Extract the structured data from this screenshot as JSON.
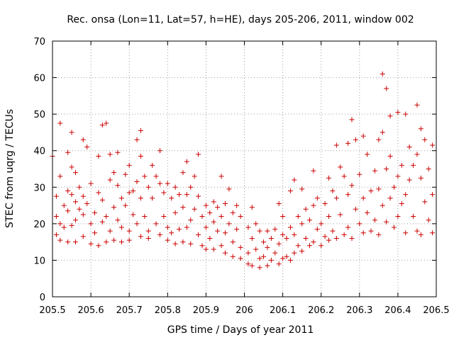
{
  "chart_data": {
    "type": "scatter",
    "title": "Rec. onsa (Lon=11, Lat=57, h=HE), days 205-206, 2011, window 002",
    "xlabel": "GPS time / Days of year 2011",
    "ylabel": "STEC from uqrg / TECUs",
    "xlim": [
      205.5,
      206.5
    ],
    "ylim": [
      0,
      70
    ],
    "xticks": [
      "205.5",
      "205.6",
      "205.7",
      "205.8",
      "205.9",
      "206",
      "206.1",
      "206.2",
      "206.3",
      "206.4",
      "206.5"
    ],
    "yticks": [
      "0",
      "10",
      "20",
      "30",
      "40",
      "50",
      "60",
      "70"
    ],
    "grid": true,
    "marker": "+",
    "color": "#cc0000",
    "points": [
      [
        205.5,
        38.5
      ],
      [
        205.51,
        27.5
      ],
      [
        205.51,
        22
      ],
      [
        205.51,
        17
      ],
      [
        205.52,
        47.5
      ],
      [
        205.52,
        33
      ],
      [
        205.52,
        20
      ],
      [
        205.52,
        15.5
      ],
      [
        205.53,
        25
      ],
      [
        205.53,
        19
      ],
      [
        205.54,
        39.5
      ],
      [
        205.54,
        29
      ],
      [
        205.54,
        23.5
      ],
      [
        205.54,
        15
      ],
      [
        205.55,
        45
      ],
      [
        205.55,
        35.5
      ],
      [
        205.55,
        28
      ],
      [
        205.55,
        19.5
      ],
      [
        205.56,
        34
      ],
      [
        205.56,
        26
      ],
      [
        205.56,
        21
      ],
      [
        205.56,
        15
      ],
      [
        205.57,
        30
      ],
      [
        205.57,
        24
      ],
      [
        205.58,
        43
      ],
      [
        205.58,
        27.5
      ],
      [
        205.58,
        22.5
      ],
      [
        205.58,
        16.5
      ],
      [
        205.59,
        41
      ],
      [
        205.59,
        25.5
      ],
      [
        205.6,
        31
      ],
      [
        205.6,
        20
      ],
      [
        205.6,
        14.5
      ],
      [
        205.61,
        23
      ],
      [
        205.61,
        17.5
      ],
      [
        205.62,
        38.5
      ],
      [
        205.62,
        28.5
      ],
      [
        205.62,
        14
      ],
      [
        205.63,
        47
      ],
      [
        205.63,
        26.5
      ],
      [
        205.63,
        20.5
      ],
      [
        205.64,
        47.5
      ],
      [
        205.64,
        22
      ],
      [
        205.64,
        15
      ],
      [
        205.65,
        39
      ],
      [
        205.65,
        32
      ],
      [
        205.65,
        18
      ],
      [
        205.66,
        34
      ],
      [
        205.66,
        24.5
      ],
      [
        205.66,
        15.5
      ],
      [
        205.67,
        39.5
      ],
      [
        205.67,
        30.5
      ],
      [
        205.67,
        21
      ],
      [
        205.68,
        27
      ],
      [
        205.68,
        19
      ],
      [
        205.68,
        15
      ],
      [
        205.69,
        33.5
      ],
      [
        205.69,
        25
      ],
      [
        205.7,
        36
      ],
      [
        205.7,
        28.5
      ],
      [
        205.7,
        18
      ],
      [
        205.7,
        15.5
      ],
      [
        205.71,
        29
      ],
      [
        205.71,
        22.5
      ],
      [
        205.72,
        43
      ],
      [
        205.72,
        31.5
      ],
      [
        205.72,
        20
      ],
      [
        205.73,
        45.5
      ],
      [
        205.73,
        38.5
      ],
      [
        205.73,
        27
      ],
      [
        205.73,
        16.5
      ],
      [
        205.74,
        33
      ],
      [
        205.74,
        22
      ],
      [
        205.75,
        30
      ],
      [
        205.75,
        18
      ],
      [
        205.75,
        16
      ],
      [
        205.76,
        36
      ],
      [
        205.76,
        27
      ],
      [
        205.77,
        33
      ],
      [
        205.77,
        20
      ],
      [
        205.78,
        40
      ],
      [
        205.78,
        31
      ],
      [
        205.78,
        17
      ],
      [
        205.79,
        28.5
      ],
      [
        205.79,
        22
      ],
      [
        205.8,
        31
      ],
      [
        205.8,
        19
      ],
      [
        205.8,
        15.5
      ],
      [
        205.81,
        27
      ],
      [
        205.81,
        17.5
      ],
      [
        205.82,
        30
      ],
      [
        205.82,
        23
      ],
      [
        205.82,
        14.5
      ],
      [
        205.83,
        28
      ],
      [
        205.83,
        18.5
      ],
      [
        205.84,
        34
      ],
      [
        205.84,
        24.5
      ],
      [
        205.84,
        15
      ],
      [
        205.85,
        37
      ],
      [
        205.85,
        28
      ],
      [
        205.85,
        19
      ],
      [
        205.86,
        30
      ],
      [
        205.86,
        21
      ],
      [
        205.86,
        14.5
      ],
      [
        205.87,
        33
      ],
      [
        205.87,
        24
      ],
      [
        205.88,
        39
      ],
      [
        205.88,
        27.5
      ],
      [
        205.88,
        17
      ],
      [
        205.89,
        22
      ],
      [
        205.89,
        14
      ],
      [
        205.9,
        25
      ],
      [
        205.9,
        19
      ],
      [
        205.9,
        13
      ],
      [
        205.91,
        23
      ],
      [
        205.91,
        16
      ],
      [
        205.92,
        26
      ],
      [
        205.92,
        20.5
      ],
      [
        205.92,
        13
      ],
      [
        205.93,
        24.5
      ],
      [
        205.93,
        18
      ],
      [
        205.94,
        33
      ],
      [
        205.94,
        22
      ],
      [
        205.94,
        14
      ],
      [
        205.95,
        25.5
      ],
      [
        205.95,
        17.5
      ],
      [
        205.95,
        12
      ],
      [
        205.96,
        29.5
      ],
      [
        205.96,
        20
      ],
      [
        205.97,
        23
      ],
      [
        205.97,
        15
      ],
      [
        205.97,
        11
      ],
      [
        205.98,
        25
      ],
      [
        205.98,
        18.5
      ],
      [
        205.99,
        22
      ],
      [
        205.99,
        13.5
      ],
      [
        205.99,
        10.5
      ],
      [
        206.01,
        19
      ],
      [
        206.01,
        12
      ],
      [
        206.01,
        9
      ],
      [
        206.02,
        24.5
      ],
      [
        206.02,
        16
      ],
      [
        206.02,
        8.5
      ],
      [
        206.03,
        20
      ],
      [
        206.03,
        13
      ],
      [
        206.04,
        18
      ],
      [
        206.04,
        10.5
      ],
      [
        206.04,
        8
      ],
      [
        206.05,
        15
      ],
      [
        206.05,
        11
      ],
      [
        206.06,
        18
      ],
      [
        206.06,
        13.5
      ],
      [
        206.06,
        8.5
      ],
      [
        206.07,
        16
      ],
      [
        206.07,
        10
      ],
      [
        206.08,
        18.5
      ],
      [
        206.08,
        12
      ],
      [
        206.09,
        25.5
      ],
      [
        206.09,
        14.5
      ],
      [
        206.09,
        9
      ],
      [
        206.1,
        22
      ],
      [
        206.1,
        17
      ],
      [
        206.1,
        10.5
      ],
      [
        206.11,
        16
      ],
      [
        206.11,
        11
      ],
      [
        206.12,
        29
      ],
      [
        206.12,
        19
      ],
      [
        206.12,
        10
      ],
      [
        206.13,
        32
      ],
      [
        206.13,
        17
      ],
      [
        206.13,
        12
      ],
      [
        206.14,
        22
      ],
      [
        206.14,
        14
      ],
      [
        206.15,
        29.5
      ],
      [
        206.15,
        20
      ],
      [
        206.15,
        12.5
      ],
      [
        206.16,
        24
      ],
      [
        206.16,
        16
      ],
      [
        206.17,
        21
      ],
      [
        206.17,
        14
      ],
      [
        206.18,
        34.5
      ],
      [
        206.18,
        25
      ],
      [
        206.18,
        15
      ],
      [
        206.19,
        27
      ],
      [
        206.19,
        18.5
      ],
      [
        206.2,
        20
      ],
      [
        206.2,
        14
      ],
      [
        206.21,
        25.5
      ],
      [
        206.21,
        16.5
      ],
      [
        206.22,
        32.5
      ],
      [
        206.22,
        22
      ],
      [
        206.22,
        15.5
      ],
      [
        206.23,
        29
      ],
      [
        206.23,
        18
      ],
      [
        206.24,
        41.5
      ],
      [
        206.24,
        27
      ],
      [
        206.24,
        16
      ],
      [
        206.25,
        35.5
      ],
      [
        206.25,
        22.5
      ],
      [
        206.26,
        33
      ],
      [
        206.26,
        17
      ],
      [
        206.27,
        42
      ],
      [
        206.27,
        28
      ],
      [
        206.27,
        19
      ],
      [
        206.28,
        48.5
      ],
      [
        206.28,
        30.5
      ],
      [
        206.28,
        16
      ],
      [
        206.29,
        43
      ],
      [
        206.29,
        24
      ],
      [
        206.3,
        33.5
      ],
      [
        206.3,
        20
      ],
      [
        206.31,
        44
      ],
      [
        206.31,
        27
      ],
      [
        206.31,
        17.5
      ],
      [
        206.32,
        39
      ],
      [
        206.32,
        23
      ],
      [
        206.33,
        29
      ],
      [
        206.33,
        18
      ],
      [
        206.34,
        34.5
      ],
      [
        206.34,
        21
      ],
      [
        206.35,
        43
      ],
      [
        206.35,
        29.5
      ],
      [
        206.35,
        17
      ],
      [
        206.36,
        61
      ],
      [
        206.36,
        45
      ],
      [
        206.36,
        25
      ],
      [
        206.37,
        57
      ],
      [
        206.37,
        35
      ],
      [
        206.37,
        20.5
      ],
      [
        206.38,
        49.5
      ],
      [
        206.38,
        38.5
      ],
      [
        206.38,
        27
      ],
      [
        206.39,
        30
      ],
      [
        206.39,
        19
      ],
      [
        206.4,
        50.5
      ],
      [
        206.4,
        33
      ],
      [
        206.4,
        22
      ],
      [
        206.41,
        36
      ],
      [
        206.41,
        25.5
      ],
      [
        206.42,
        50
      ],
      [
        206.42,
        28
      ],
      [
        206.42,
        17.5
      ],
      [
        206.43,
        41
      ],
      [
        206.43,
        32
      ],
      [
        206.44,
        36
      ],
      [
        206.44,
        22
      ],
      [
        206.45,
        52.5
      ],
      [
        206.45,
        39
      ],
      [
        206.45,
        18
      ],
      [
        206.46,
        46
      ],
      [
        206.46,
        32.5
      ],
      [
        206.46,
        17
      ],
      [
        206.47,
        43
      ],
      [
        206.47,
        26
      ],
      [
        206.48,
        35
      ],
      [
        206.48,
        21
      ],
      [
        206.49,
        41.5
      ],
      [
        206.49,
        28
      ],
      [
        206.49,
        17.5
      ]
    ]
  }
}
